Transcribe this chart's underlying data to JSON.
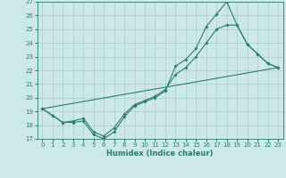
{
  "xlabel": "Humidex (Indice chaleur)",
  "bg_color": "#cce8e8",
  "grid_color": "#aacccc",
  "line_color": "#2a7d6e",
  "xlim": [
    -0.5,
    23.5
  ],
  "ylim": [
    17,
    27
  ],
  "xticks": [
    0,
    1,
    2,
    3,
    4,
    5,
    6,
    7,
    8,
    9,
    10,
    11,
    12,
    13,
    14,
    15,
    16,
    17,
    18,
    19,
    20,
    21,
    22,
    23
  ],
  "yticks": [
    17,
    18,
    19,
    20,
    21,
    22,
    23,
    24,
    25,
    26,
    27
  ],
  "line1_x": [
    0,
    1,
    2,
    3,
    4,
    5,
    6,
    7,
    8,
    9,
    10,
    11,
    12,
    13,
    14,
    15,
    16,
    17,
    18,
    19,
    20,
    21,
    22,
    23
  ],
  "line1_y": [
    19.2,
    18.7,
    18.2,
    18.2,
    18.3,
    17.3,
    17.0,
    17.5,
    18.6,
    19.4,
    19.7,
    20.0,
    20.5,
    22.3,
    22.8,
    23.6,
    25.2,
    26.1,
    27.0,
    25.3,
    23.9,
    23.2,
    22.5,
    22.2
  ],
  "line2_x": [
    0,
    1,
    2,
    3,
    4,
    5,
    6,
    7,
    8,
    9,
    10,
    11,
    12,
    13,
    14,
    15,
    16,
    17,
    18,
    19,
    20,
    21,
    22,
    23
  ],
  "line2_y": [
    19.2,
    18.7,
    18.2,
    18.3,
    18.5,
    17.5,
    17.2,
    17.8,
    18.8,
    19.5,
    19.8,
    20.1,
    20.6,
    21.7,
    22.2,
    23.0,
    24.0,
    25.0,
    25.3,
    25.3,
    23.9,
    23.2,
    22.5,
    22.2
  ],
  "line3_x": [
    0,
    23
  ],
  "line3_y": [
    19.2,
    22.2
  ]
}
